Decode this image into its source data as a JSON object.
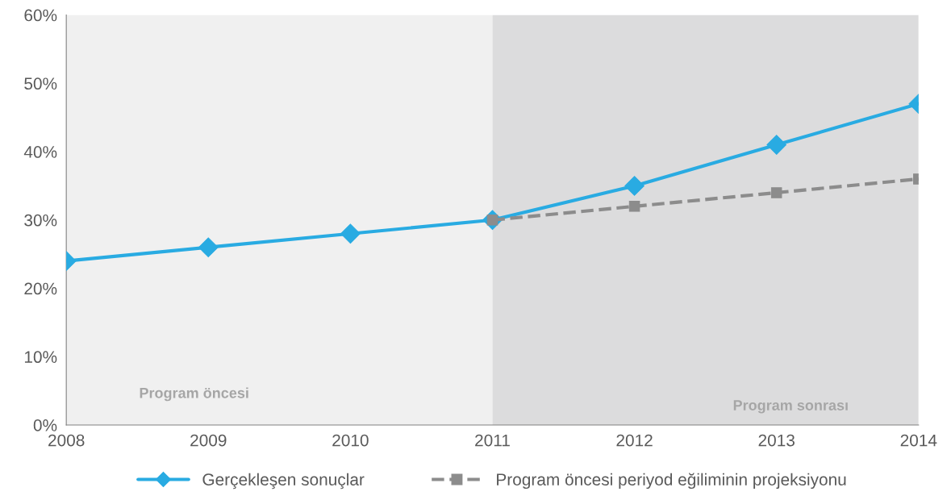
{
  "chart_data": {
    "type": "line",
    "xlim": [
      2008,
      2014
    ],
    "xticks": [
      2008,
      2009,
      2010,
      2011,
      2012,
      2013,
      2014
    ],
    "ylim": [
      0,
      60
    ],
    "yticks": [
      {
        "value": 0,
        "label": "0%"
      },
      {
        "value": 10,
        "label": "10%"
      },
      {
        "value": 20,
        "label": "20%"
      },
      {
        "value": 30,
        "label": "30%"
      },
      {
        "value": 40,
        "label": "40%"
      },
      {
        "value": 50,
        "label": "50%"
      },
      {
        "value": 60,
        "label": "60%"
      }
    ],
    "grid": false,
    "legend": "bottom",
    "series": [
      {
        "name": "Gerçekleşen sonuçlar",
        "color": "#29abe2",
        "x": [
          2008,
          2009,
          2010,
          2011,
          2012,
          2013,
          2014
        ],
        "values": [
          24,
          26,
          28,
          30,
          35,
          41,
          47
        ],
        "marker": "diamond",
        "line_style": "solid"
      },
      {
        "name": "Program öncesi periyod eğiliminin projeksiyonu",
        "color": "#8c8c8c",
        "x": [
          2011,
          2012,
          2013,
          2014
        ],
        "values": [
          30,
          32,
          34,
          36
        ],
        "marker": "square",
        "line_style": "dashed"
      }
    ],
    "bands": [
      {
        "axis": "x",
        "from": 2008,
        "to": 2011,
        "label": "Program öncesi",
        "color": "#f0f0f0"
      },
      {
        "axis": "x",
        "from": 2011,
        "to": 2014,
        "label": "Program sonrası",
        "color": "#dcdcdd"
      }
    ]
  }
}
